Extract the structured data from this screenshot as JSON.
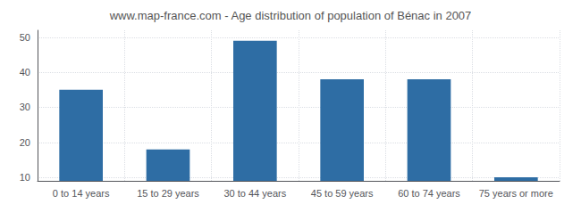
{
  "chart_data": {
    "type": "bar",
    "title": "www.map-france.com - Age distribution of population of Bénac in 2007",
    "categories": [
      "0 to 14 years",
      "15 to 29 years",
      "30 to 44 years",
      "45 to 59 years",
      "60 to 74 years",
      "75 years or more"
    ],
    "values": [
      35,
      18,
      49,
      38,
      38,
      10
    ],
    "color": "#2e6da4",
    "ylim": [
      9,
      52
    ],
    "yticks": [
      10,
      20,
      30,
      40,
      50
    ],
    "grid": true
  }
}
